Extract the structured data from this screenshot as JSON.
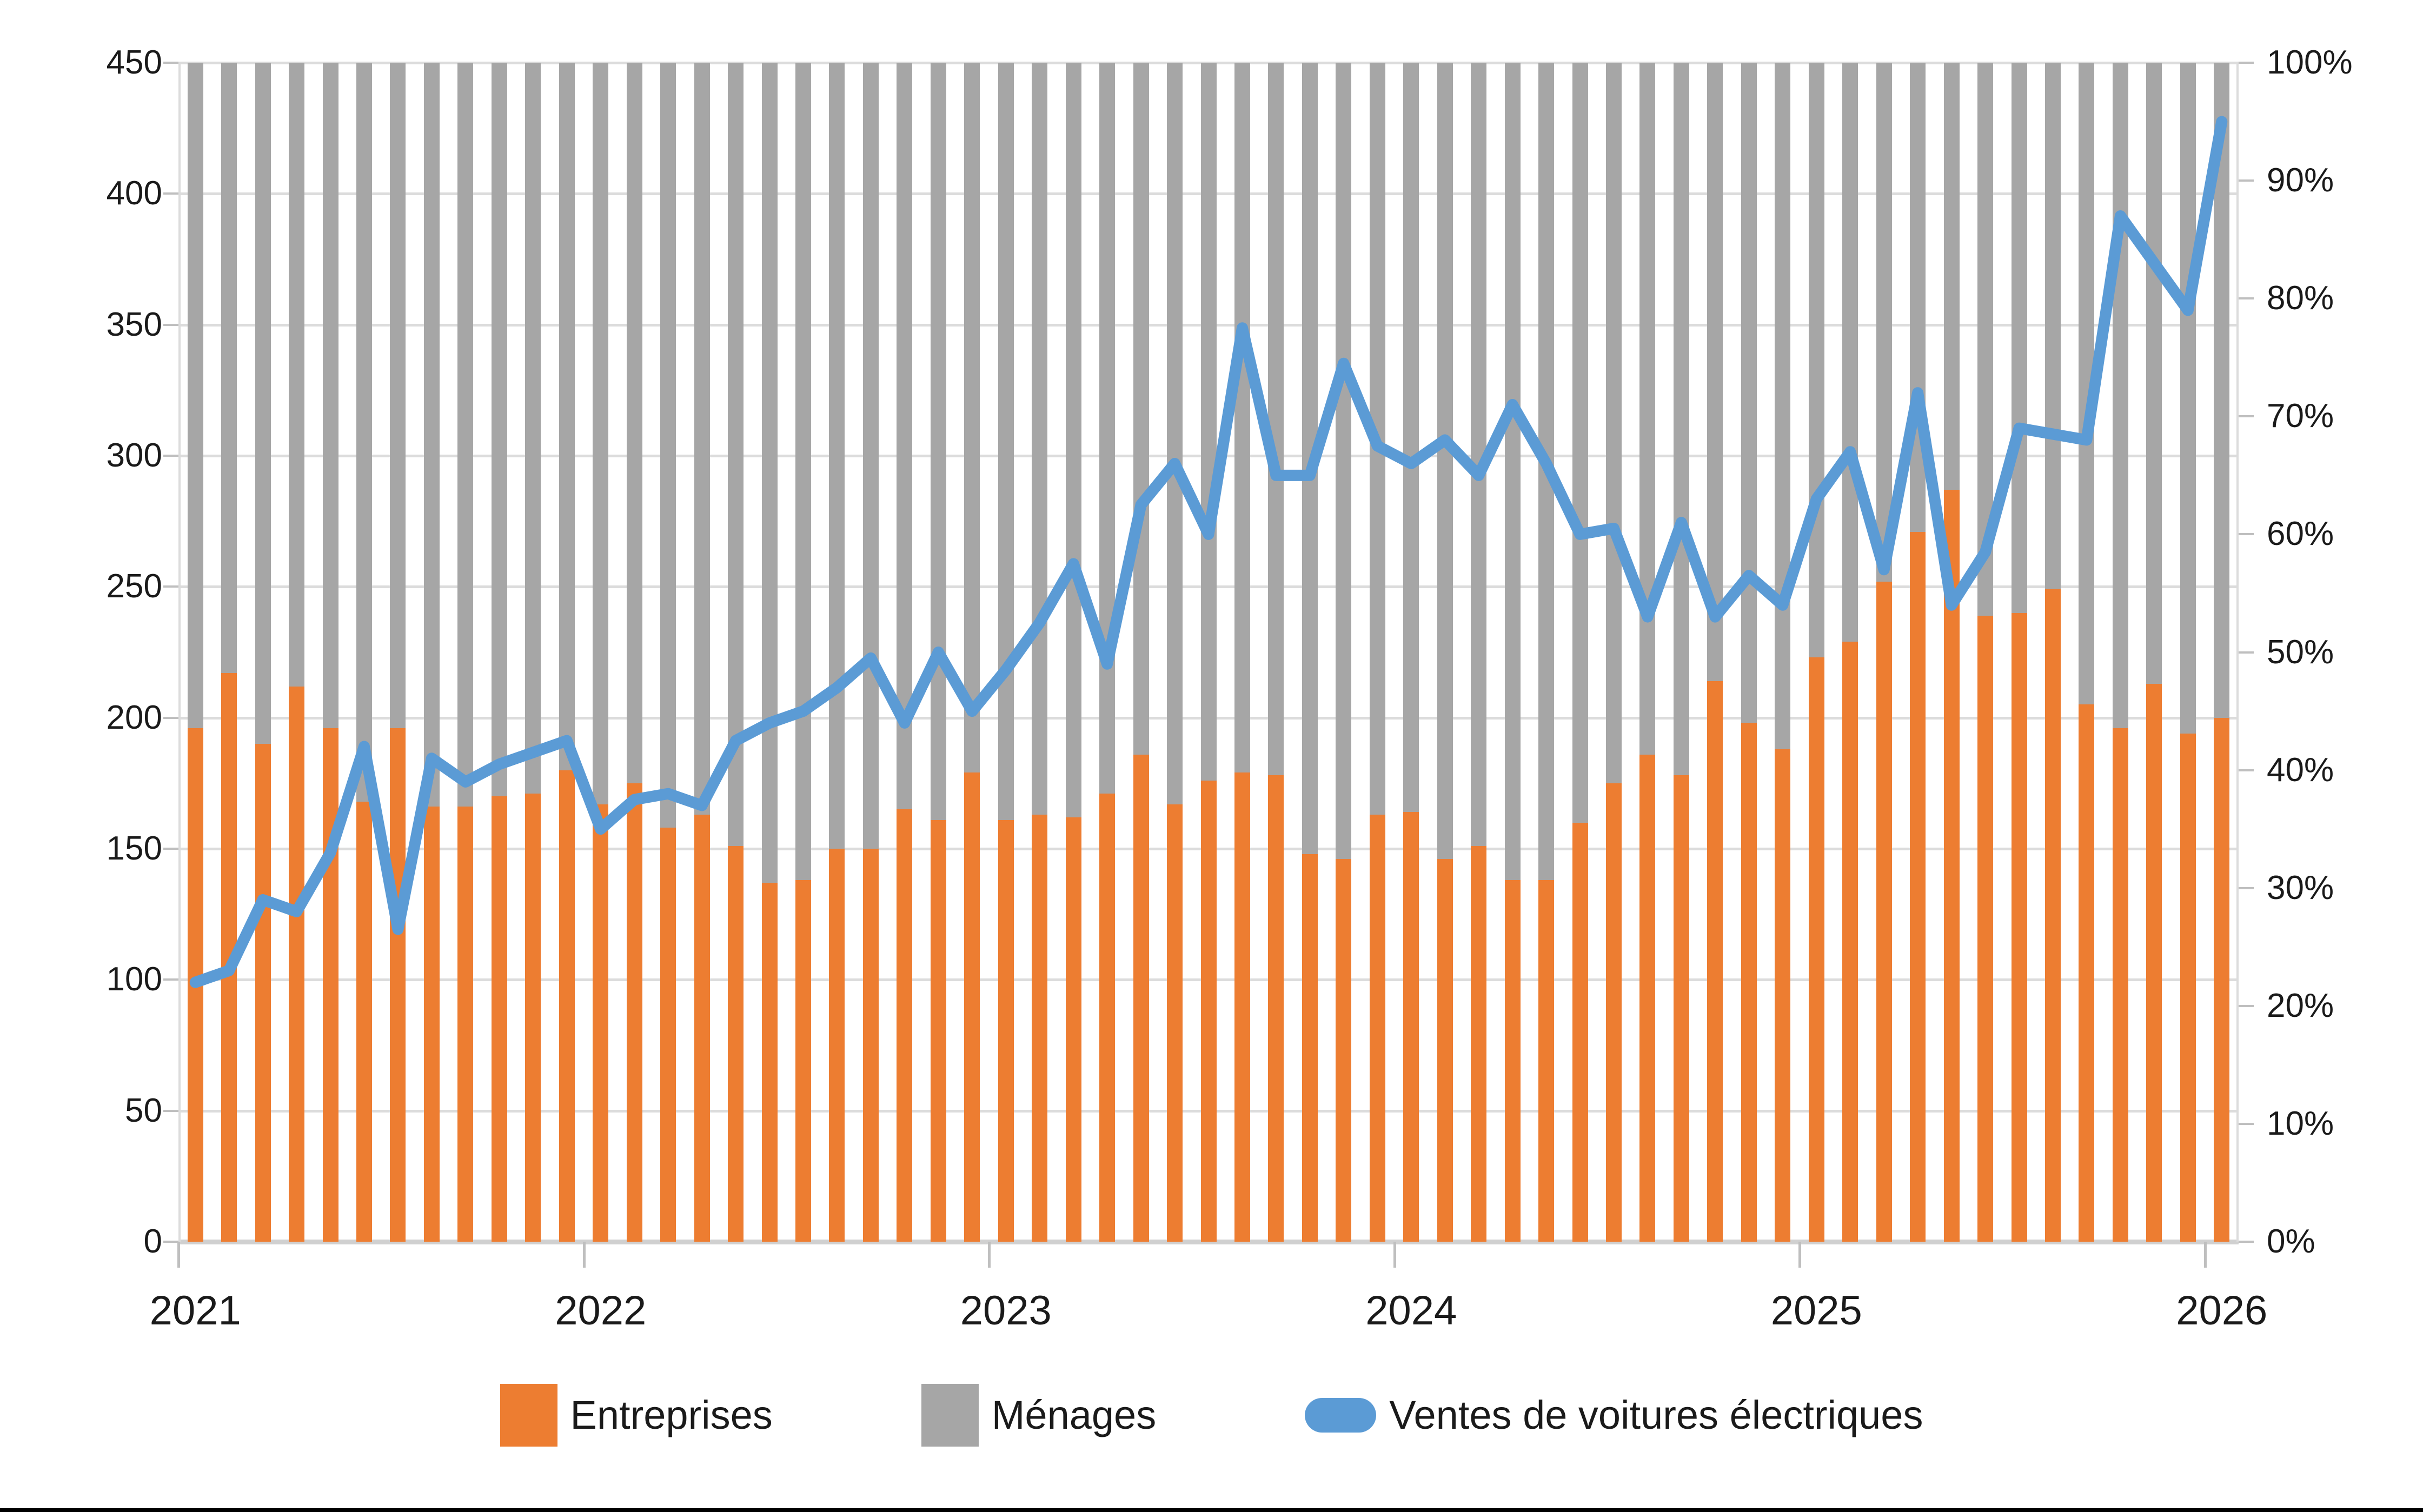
{
  "chart_data": {
    "type": "combo-stacked-bar-line",
    "months": [
      "2021-01",
      "2021-02",
      "2021-03",
      "2021-04",
      "2021-05",
      "2021-06",
      "2021-07",
      "2021-08",
      "2021-09",
      "2021-10",
      "2021-11",
      "2021-12",
      "2022-01",
      "2022-02",
      "2022-03",
      "2022-04",
      "2022-05",
      "2022-06",
      "2022-07",
      "2022-08",
      "2022-09",
      "2022-10",
      "2022-11",
      "2022-12",
      "2023-01",
      "2023-02",
      "2023-03",
      "2023-04",
      "2023-05",
      "2023-06",
      "2023-07",
      "2023-08",
      "2023-09",
      "2023-10",
      "2023-11",
      "2023-12",
      "2024-01",
      "2024-02",
      "2024-03",
      "2024-04",
      "2024-05",
      "2024-06",
      "2024-07",
      "2024-08",
      "2024-09",
      "2024-10",
      "2024-11",
      "2024-12",
      "2025-01",
      "2025-02",
      "2025-03",
      "2025-04",
      "2025-05",
      "2025-06",
      "2025-07",
      "2025-08",
      "2025-09",
      "2025-10",
      "2025-11",
      "2025-12",
      "2026-01"
    ],
    "series": [
      {
        "name": "Entreprises",
        "type": "bar",
        "stacked": true,
        "color": "#ED7D31",
        "axis": "left",
        "values": [
          196,
          217,
          190,
          212,
          196,
          168,
          196,
          166,
          166,
          170,
          171,
          180,
          167,
          175,
          158,
          163,
          151,
          137,
          138,
          150,
          150,
          165,
          161,
          179,
          161,
          163,
          162,
          171,
          186,
          167,
          176,
          179,
          178,
          148,
          146,
          163,
          164,
          146,
          151,
          138,
          138,
          160,
          175,
          186,
          178,
          214,
          198,
          188,
          223,
          229,
          252,
          271,
          287,
          239,
          240,
          249,
          205,
          196,
          213,
          194,
          200
        ]
      },
      {
        "name": "Ménages",
        "type": "bar",
        "stacked": true,
        "color": "#A6A6A6",
        "axis": "left",
        "values": [
          254,
          233,
          260,
          238,
          254,
          282,
          254,
          284,
          284,
          280,
          279,
          270,
          283,
          275,
          292,
          287,
          299,
          313,
          312,
          300,
          300,
          285,
          289,
          271,
          289,
          287,
          288,
          279,
          264,
          283,
          274,
          271,
          272,
          302,
          304,
          287,
          286,
          304,
          299,
          312,
          312,
          290,
          275,
          264,
          272,
          236,
          252,
          262,
          227,
          221,
          198,
          179,
          163,
          211,
          210,
          201,
          245,
          254,
          237,
          256,
          250
        ]
      },
      {
        "name": "Ventes de voitures électriques",
        "type": "line",
        "color": "#5B9BD5",
        "axis": "right",
        "values_percent": [
          22,
          23,
          29,
          28,
          33,
          42,
          26.5,
          41,
          39,
          40.5,
          41.5,
          42.5,
          35,
          37.5,
          38,
          37,
          42.5,
          44,
          45,
          47,
          49.5,
          44,
          50,
          45,
          48.5,
          52.5,
          57.5,
          49,
          62.5,
          66,
          60,
          77.5,
          65,
          65,
          74.5,
          67.5,
          66,
          68,
          65,
          71,
          66,
          60,
          60.5,
          53,
          61,
          53,
          56.5,
          54,
          63,
          67,
          57,
          72,
          54,
          58.5,
          69,
          68.5,
          68,
          87,
          83,
          79,
          95
        ]
      }
    ],
    "left_axis": {
      "min": 0,
      "max": 450,
      "step": 50,
      "ticks": [
        "0",
        "50",
        "100",
        "150",
        "200",
        "250",
        "300",
        "350",
        "400",
        "450"
      ]
    },
    "right_axis": {
      "min": 0,
      "max": 100,
      "step": 10,
      "ticks": [
        "0%",
        "10%",
        "20%",
        "30%",
        "40%",
        "50%",
        "60%",
        "70%",
        "80%",
        "90%",
        "100%"
      ]
    },
    "x_axis": {
      "year_labels": [
        "2021",
        "2022",
        "2023",
        "2024",
        "2025",
        "2026"
      ]
    },
    "legend": [
      {
        "label": "Entreprises",
        "swatch": "square",
        "color": "#ED7D31"
      },
      {
        "label": "Ménages",
        "swatch": "square",
        "color": "#A6A6A6"
      },
      {
        "label": "Ventes de voitures électriques",
        "swatch": "line",
        "color": "#5B9BD5"
      }
    ],
    "colors": {
      "grid": "#dcdcdc",
      "axis": "#d0d0d0",
      "text": "#1a1a1a"
    },
    "layout": {
      "grid": true,
      "legend_position": "bottom"
    }
  }
}
